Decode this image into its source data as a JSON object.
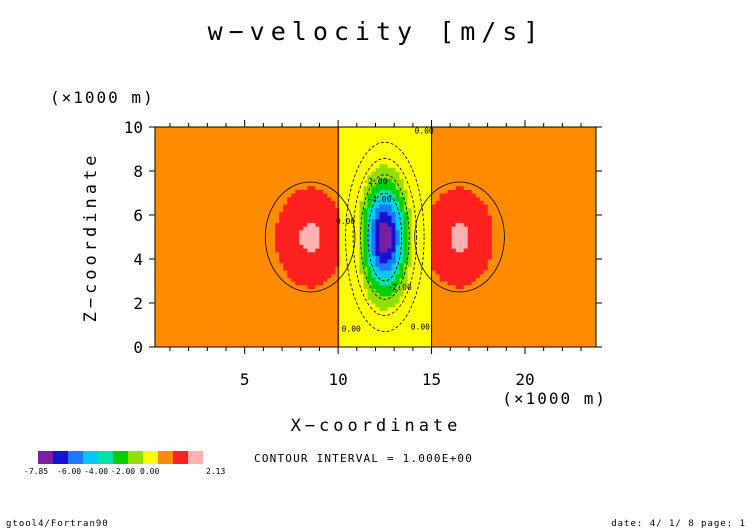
{
  "chart_data": {
    "type": "contour",
    "title": "w−velocity [m/s]",
    "xlabel": "X−coordinate",
    "ylabel": "Z−coordinate",
    "x_unit": "(×1000 m)",
    "y_unit": "(×1000 m)",
    "xlim": [
      0.2,
      23.8
    ],
    "ylim": [
      0,
      10
    ],
    "x_ticks": [
      "5",
      "10",
      "15",
      "20"
    ],
    "y_ticks": [
      "0",
      "2",
      "4",
      "6",
      "8",
      "10"
    ],
    "contour_interval_text": "CONTOUR INTERVAL = 1.000E+00",
    "contour_labels": [
      "0.00",
      "0.00",
      "0.00",
      "0.00",
      "-2.00",
      "-2.00",
      "-4.00"
    ],
    "field": {
      "min": -7.85,
      "max": 2.13,
      "updraft_peak": 2.13,
      "downdraft_center_x": 12.5,
      "downdraft_center_z": 5.0,
      "updraft_center_x": [
        8.5,
        16.5
      ],
      "updraft_center_z": 5.0,
      "zero_line_x_range": [
        10.0,
        15.0
      ]
    },
    "colorbar": {
      "labels": [
        "-7.85",
        "-6.00",
        "-4.00",
        "-2.00",
        "0.00",
        "2.13"
      ],
      "colors": [
        "#7a1fa0",
        "#1414d0",
        "#1e78ff",
        "#00c8ff",
        "#00e0b0",
        "#00d000",
        "#90e000",
        "#ffff00",
        "#ff8c00",
        "#ff2020",
        "#ffb0b0"
      ]
    }
  },
  "footer": {
    "left": "gtool4/Fortran90",
    "right": "date: 4/ 1/ 8 page: 1"
  }
}
